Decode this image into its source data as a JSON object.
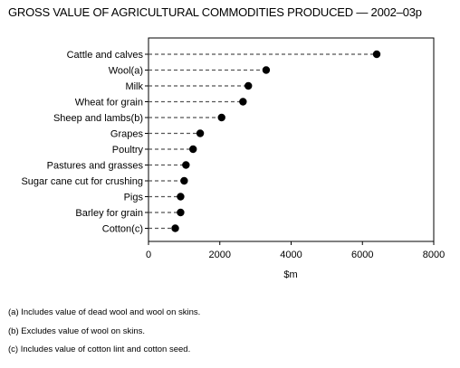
{
  "title": "GROSS VALUE OF AGRICULTURAL COMMODITIES PRODUCED — 2002–03p",
  "chart_data": {
    "type": "scatter",
    "style": "dot plot with dashed leader lines",
    "categories": [
      "Cattle and calves",
      "Wool(a)",
      "Milk",
      "Wheat for grain",
      "Sheep and lambs(b)",
      "Grapes",
      "Poultry",
      "Pastures and grasses",
      "Sugar cane cut for crushing",
      "Pigs",
      "Barley for grain",
      "Cotton(c)"
    ],
    "values": [
      6400,
      3300,
      2800,
      2650,
      2050,
      1450,
      1250,
      1050,
      1000,
      900,
      900,
      750
    ],
    "xlabel": "$m",
    "xlim": [
      0,
      8000
    ],
    "xticks": [
      "0",
      "2000",
      "4000",
      "6000",
      "8000"
    ],
    "grid": false,
    "colors": {
      "marker": "#000000",
      "leader": "#555555",
      "frame": "#000000"
    }
  },
  "notes": [
    "(a) Includes value of dead wool and wool on skins.",
    "(b) Excludes value of wool on skins.",
    "(c) Includes value of cotton lint and cotton seed."
  ]
}
